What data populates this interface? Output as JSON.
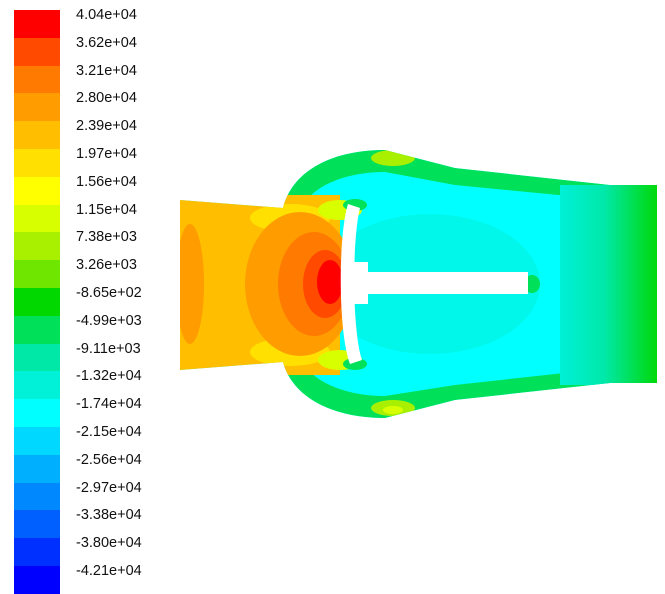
{
  "legend": {
    "labels": [
      "4.04e+04",
      "3.62e+04",
      "3.21e+04",
      "2.80e+04",
      "2.39e+04",
      "1.97e+04",
      "1.56e+04",
      "1.15e+04",
      "7.38e+03",
      "3.26e+03",
      "-8.65e+02",
      "-4.99e+03",
      "-9.11e+03",
      "-1.32e+04",
      "-1.74e+04",
      "-2.15e+04",
      "-2.56e+04",
      "-2.97e+04",
      "-3.38e+04",
      "-3.80e+04",
      "-4.21e+04"
    ],
    "colors": [
      "#ff0000",
      "#ff4a00",
      "#ff7a00",
      "#ff9c00",
      "#ffbf00",
      "#ffe000",
      "#ffff00",
      "#d8ff00",
      "#a8f000",
      "#6ee600",
      "#00d800",
      "#00e058",
      "#00e8a8",
      "#00f0d8",
      "#00ffff",
      "#00d8ff",
      "#00b0ff",
      "#0088ff",
      "#0060ff",
      "#0030ff",
      "#0000ff"
    ]
  }
}
